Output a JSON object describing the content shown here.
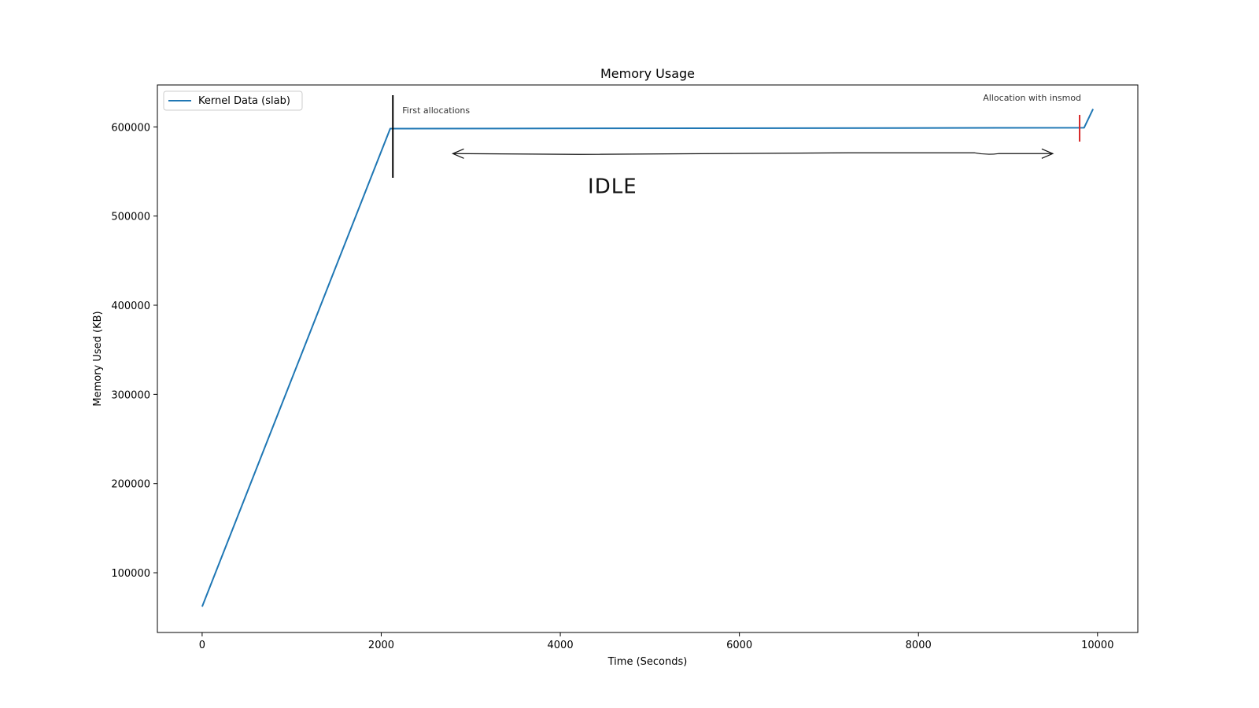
{
  "chart_data": {
    "type": "line",
    "title": "Memory Usage",
    "xlabel": "Time (Seconds)",
    "ylabel": "Memory Used (KB)",
    "xlim": [
      -500,
      10450
    ],
    "ylim": [
      33000,
      647000
    ],
    "xticks": [
      0,
      2000,
      4000,
      6000,
      8000,
      10000
    ],
    "yticks": [
      100000,
      200000,
      300000,
      400000,
      500000,
      600000
    ],
    "grid": false,
    "legend_position": "top-left",
    "series": [
      {
        "name": "Kernel Data (slab)",
        "color": "#1f77b4",
        "x": [
          0,
          2100,
          9850,
          9950
        ],
        "y": [
          62000,
          598000,
          599000,
          620000
        ]
      }
    ],
    "annotations": [
      {
        "text": "First allocations",
        "marker_x": 2130,
        "marker_color": "#000000"
      },
      {
        "text": "Allocation with insmod",
        "marker_x": 9800,
        "marker_color": "#d62728"
      },
      {
        "text": "IDLE",
        "from_x": 2800,
        "to_x": 9500,
        "y": 570000
      }
    ]
  }
}
